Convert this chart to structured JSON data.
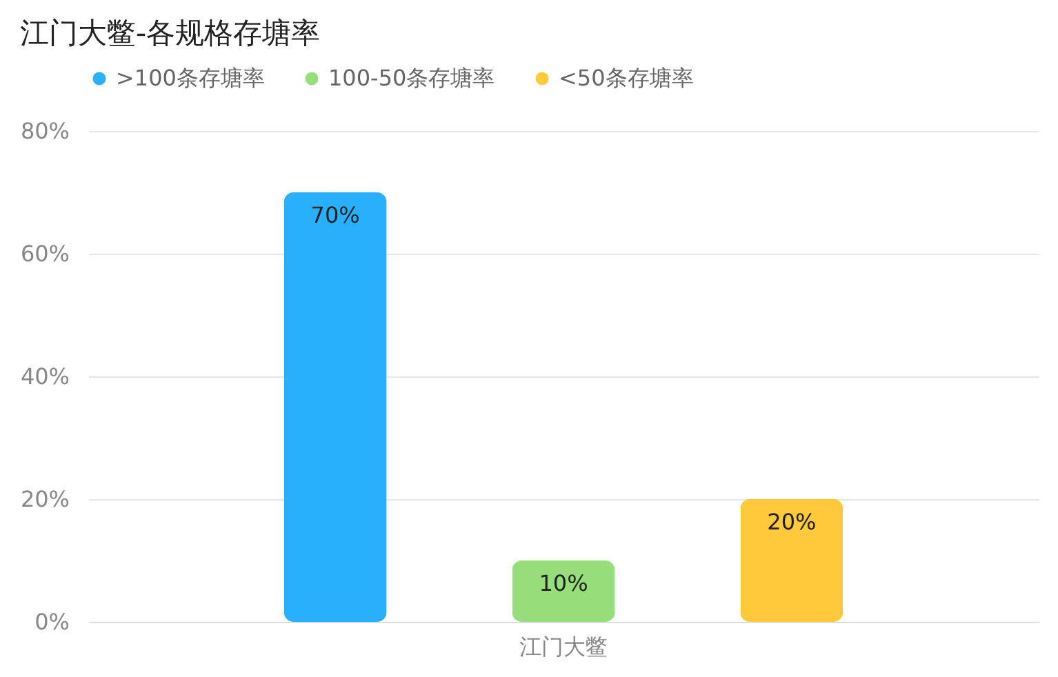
{
  "chart_data": {
    "type": "bar",
    "title": "江门大鳖-各规格存塘率",
    "categories": [
      "江门大鳖"
    ],
    "series": [
      {
        "name": ">100条存塘率",
        "color": "#29b0fd",
        "values": [
          70
        ],
        "value_labels": [
          "70%"
        ]
      },
      {
        "name": "100-50条存塘率",
        "color": "#95de7a",
        "values": [
          10
        ],
        "value_labels": [
          "10%"
        ]
      },
      {
        "name": "<50条存塘率",
        "color": "#ffc93c",
        "values": [
          20
        ],
        "value_labels": [
          "20%"
        ]
      }
    ],
    "ylim": [
      0,
      80
    ],
    "yticks": [
      {
        "value": 0,
        "label": "0%"
      },
      {
        "value": 20,
        "label": "20%"
      },
      {
        "value": 40,
        "label": "40%"
      },
      {
        "value": 60,
        "label": "60%"
      },
      {
        "value": 80,
        "label": "80%"
      }
    ],
    "grid": "y",
    "legend": "top left",
    "marker": "circle"
  }
}
